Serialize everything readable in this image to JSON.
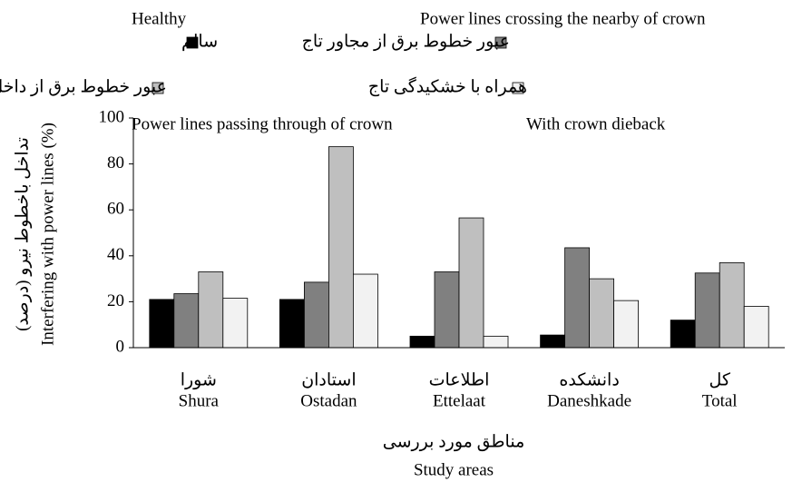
{
  "chart_data": {
    "type": "bar",
    "y_label": "Interfering with power lines (%)",
    "y_label_fa": "تداخل باخطوط نیرو (درصد)",
    "x_label": "Study areas",
    "x_label_fa": "مناطق مورد بررسی",
    "categories": [
      "Shura",
      "Ostadan",
      "Ettelaat",
      "Daneshkade",
      "Total"
    ],
    "categories_fa": [
      "شورا",
      "استادان",
      "اطلاعات",
      "دانشکده",
      "کل"
    ],
    "series": [
      {
        "name": "Healthy",
        "name_fa": "سالم",
        "color": "#000000",
        "values": [
          21,
          21,
          5,
          5.5,
          12
        ]
      },
      {
        "name": "Power lines crossing the nearby of crown",
        "name_fa": "عبور خطوط برق از مجاور تاج",
        "color": "#808080",
        "values": [
          23.5,
          28.5,
          33,
          43.5,
          32.5
        ]
      },
      {
        "name": "Power lines passing through of crown",
        "name_fa": "عبور خطوط برق از داخل تاج",
        "color": "#bfbfbf",
        "values": [
          33,
          87.5,
          56.5,
          30,
          37
        ]
      },
      {
        "name": "With crown dieback",
        "name_fa": "همراه با خشکیدگی تاج",
        "color": "#f2f2f2",
        "values": [
          21.5,
          32,
          5,
          20.5,
          18
        ]
      }
    ],
    "ylim": [
      0,
      100
    ],
    "yticks": [
      0,
      20,
      40,
      60,
      80,
      100
    ]
  }
}
